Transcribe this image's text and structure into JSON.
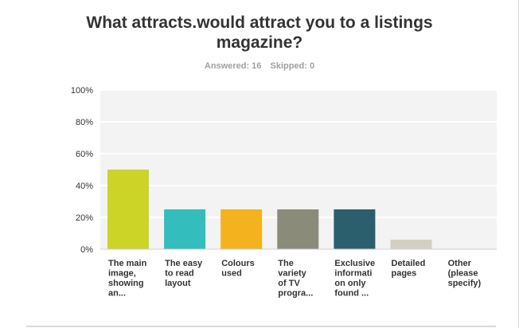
{
  "header": {
    "answered_label": "Answered: 16",
    "skipped_label": "Skipped: 0"
  },
  "chart_data": {
    "type": "bar",
    "title": "What attracts.would attract you to a listings magazine?",
    "categories": [
      [
        "The main",
        "image,",
        "showing",
        "an..."
      ],
      [
        "The easy",
        "to read",
        "layout"
      ],
      [
        "Colours",
        "used"
      ],
      [
        "The",
        "variety",
        "of TV",
        "progra..."
      ],
      [
        "Exclusive",
        "informati",
        "on only",
        "found ..."
      ],
      [
        "Detailed",
        "pages"
      ],
      [
        "Other",
        "(please",
        "specify)"
      ]
    ],
    "values": [
      50,
      25,
      25,
      25,
      25,
      6,
      0
    ],
    "colors": [
      "#cdd428",
      "#33bdbd",
      "#f5b21f",
      "#8b8b7a",
      "#2b5f6e",
      "#d3d0c2",
      "#c0c0c0"
    ],
    "ylim": [
      0,
      100
    ],
    "yticks": [
      "0%",
      "20%",
      "40%",
      "60%",
      "80%",
      "100%"
    ],
    "grid": true
  }
}
